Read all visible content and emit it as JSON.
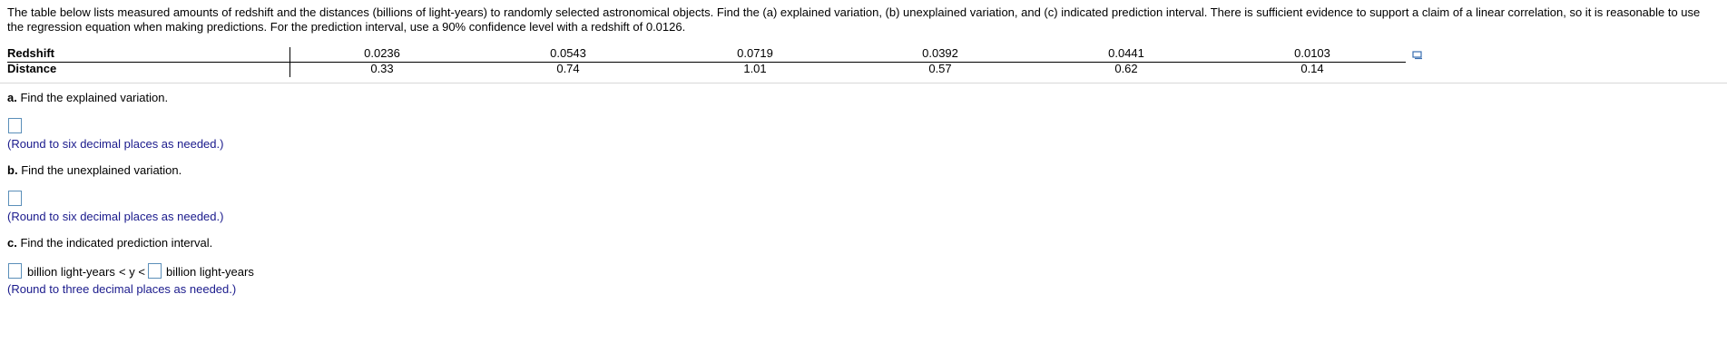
{
  "intro": "The table below lists measured amounts of redshift and the distances (billions of light-years) to randomly selected astronomical objects. Find the (a) explained variation, (b) unexplained variation, and (c) indicated prediction interval. There is sufficient evidence to support a claim of a linear correlation, so it is reasonable to use the regression equation when making predictions. For the prediction interval, use a 90% confidence level with a redshift of 0.0126.",
  "table": {
    "rows": [
      [
        "Redshift",
        "0.0236",
        "0.0543",
        "0.0719",
        "0.0392",
        "0.0441",
        "0.0103"
      ],
      [
        "Distance",
        "0.33",
        "0.74",
        "1.01",
        "0.57",
        "0.62",
        "0.14"
      ]
    ]
  },
  "parts": [
    {
      "label": "a.",
      "question": "Find the explained variation.",
      "hint": "(Round to six decimal places as needed.)"
    },
    {
      "label": "b.",
      "question": "Find the unexplained variation.",
      "hint": "(Round to six decimal places as needed.)"
    },
    {
      "label": "c.",
      "question": "Find the indicated prediction interval.",
      "hint": "(Round to three decimal places as needed.)"
    }
  ],
  "interval": {
    "unit_left": "billion light-years",
    "relation": "< y <",
    "unit_right": "billion light-years"
  }
}
